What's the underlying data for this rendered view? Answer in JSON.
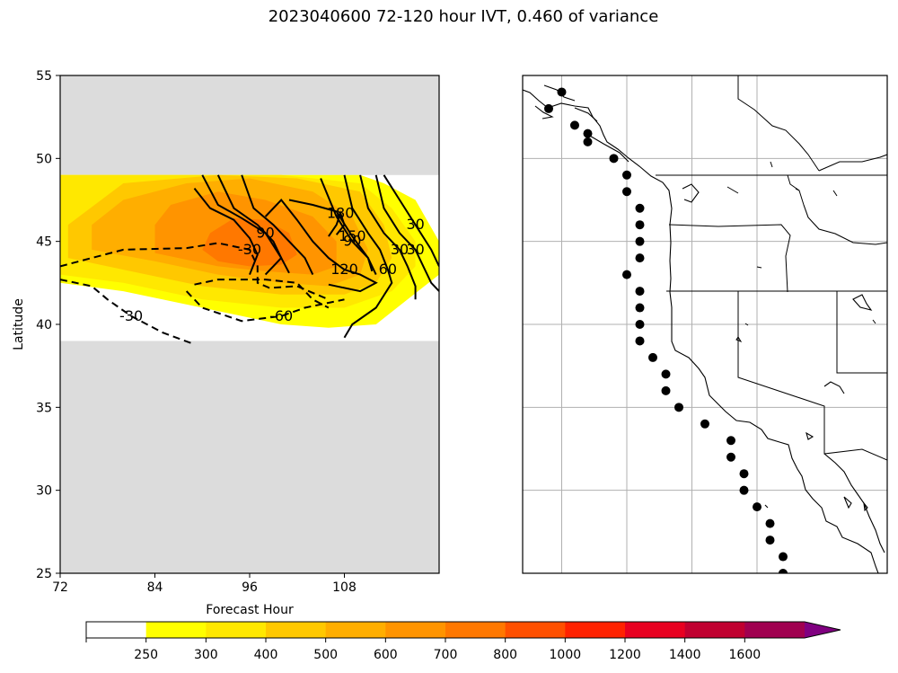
{
  "figure": {
    "title": "2023040600 72-120 hour IVT, 0.460 of variance"
  },
  "chart_data": [
    {
      "type": "heatmap",
      "panel": "hovmoller",
      "xlabel": "Forecast Hour",
      "ylabel": "Latitude",
      "xlim": [
        72,
        120
      ],
      "ylim": [
        25,
        55
      ],
      "xticks": [
        72,
        84,
        96,
        108
      ],
      "yticks": [
        25,
        30,
        35,
        40,
        45,
        50,
        55
      ],
      "masked_fill": "#dcdcdc",
      "data_lat_range": [
        39,
        49
      ],
      "fill_levels": [
        {
          "level": 250,
          "color": "#ffff00",
          "polygon": [
            [
              72,
              42.5
            ],
            [
              80,
              42
            ],
            [
              90,
              41
            ],
            [
              100,
              40
            ],
            [
              106,
              39.8
            ],
            [
              112,
              40
            ],
            [
              116,
              41.5
            ],
            [
              120,
              43
            ],
            [
              120,
              45
            ],
            [
              117,
              47.5
            ],
            [
              113,
              48.5
            ],
            [
              110,
              49
            ],
            [
              72,
              49
            ]
          ]
        },
        {
          "level": 300,
          "color": "#ffe800",
          "polygon": [
            [
              72,
              43
            ],
            [
              80,
              42.5
            ],
            [
              90,
              41.5
            ],
            [
              100,
              41
            ],
            [
              108,
              41
            ],
            [
              114,
              42
            ],
            [
              117,
              43.5
            ],
            [
              117,
              45
            ],
            [
              114,
              47
            ],
            [
              110,
              48.5
            ],
            [
              100,
              49
            ],
            [
              72,
              49
            ],
            [
              72,
              48
            ]
          ]
        },
        {
          "level": 400,
          "color": "#ffc800",
          "polygon": [
            [
              73,
              44
            ],
            [
              80,
              43.3
            ],
            [
              90,
              42.3
            ],
            [
              100,
              41.8
            ],
            [
              108,
              41.8
            ],
            [
              112,
              42.5
            ],
            [
              114,
              44
            ],
            [
              113,
              46
            ],
            [
              110,
              48
            ],
            [
              102,
              48.8
            ],
            [
              92,
              49
            ],
            [
              80,
              48.5
            ],
            [
              73,
              46
            ]
          ]
        },
        {
          "level": 500,
          "color": "#ffae00",
          "polygon": [
            [
              76,
              44.5
            ],
            [
              84,
              43.8
            ],
            [
              92,
              43
            ],
            [
              100,
              42.5
            ],
            [
              106,
              42.3
            ],
            [
              110,
              43
            ],
            [
              111,
              44.5
            ],
            [
              109,
              46.5
            ],
            [
              104,
              48
            ],
            [
              96,
              48.8
            ],
            [
              88,
              48.5
            ],
            [
              80,
              47.5
            ],
            [
              76,
              46
            ]
          ]
        },
        {
          "level": 600,
          "color": "#ff9400",
          "polygon": [
            [
              84,
              44.3
            ],
            [
              92,
              43.5
            ],
            [
              98,
              43.2
            ],
            [
              104,
              43
            ],
            [
              107,
              43.5
            ],
            [
              107,
              45
            ],
            [
              104,
              46.5
            ],
            [
              98,
              47.5
            ],
            [
              92,
              48
            ],
            [
              86,
              47.2
            ],
            [
              84,
              46
            ]
          ]
        },
        {
          "level": 700,
          "color": "#ff7800",
          "polygon": [
            [
              92,
              43.8
            ],
            [
              96,
              43.5
            ],
            [
              100,
              43.6
            ],
            [
              102,
              44.2
            ],
            [
              101,
              45.5
            ],
            [
              98,
              46.3
            ],
            [
              94,
              46.4
            ],
            [
              91,
              45.5
            ],
            [
              90,
              44.5
            ]
          ]
        }
      ],
      "contours": [
        {
          "level": 30,
          "label": "30",
          "style": "solid",
          "points": [
            [
              113,
              49
            ],
            [
              115,
              47.5
            ],
            [
              117,
              46
            ],
            [
              119,
              44.5
            ],
            [
              120,
              43.5
            ]
          ]
        },
        {
          "level": 30,
          "label": "30",
          "style": "solid",
          "points": [
            [
              112,
              49
            ],
            [
              113,
              47
            ],
            [
              115,
              45.5
            ],
            [
              117,
              44.5
            ],
            [
              118,
              43.5
            ],
            [
              119,
              42.5
            ],
            [
              120,
              42
            ]
          ]
        },
        {
          "level": 30,
          "label": "30",
          "style": "solid",
          "points": [
            [
              110,
              49
            ],
            [
              111,
              47
            ],
            [
              113,
              45.5
            ],
            [
              115,
              44.5
            ],
            [
              116,
              43.5
            ],
            [
              117,
              42.3
            ],
            [
              117,
              41.5
            ]
          ]
        },
        {
          "level": 60,
          "label": "60",
          "style": "solid",
          "points": [
            [
              108,
              49
            ],
            [
              109,
              47
            ],
            [
              111,
              45.5
            ],
            [
              112.5,
              44.5
            ],
            [
              113.5,
              43.3
            ],
            [
              114,
              42.5
            ],
            [
              112,
              41
            ],
            [
              109,
              40
            ],
            [
              108,
              39.2
            ]
          ]
        },
        {
          "level": 90,
          "label": "90",
          "style": "solid",
          "points": [
            [
              105,
              48.8
            ],
            [
              107,
              46.5
            ],
            [
              109,
              45
            ],
            [
              111,
              44
            ],
            [
              112,
              43
            ]
          ]
        },
        {
          "level": 150,
          "label": "150",
          "style": "solid",
          "points": [
            [
              101,
              47.5
            ],
            [
              104,
              47.2
            ],
            [
              107,
              46.8
            ],
            [
              109,
              45.3
            ],
            [
              111,
              44
            ],
            [
              111.5,
              43.2
            ]
          ]
        },
        {
          "level": 180,
          "label": "180",
          "style": "solid",
          "points": [
            [
              106,
              45.3
            ],
            [
              107,
              46
            ],
            [
              107.5,
              46.7
            ],
            [
              108,
              46
            ],
            [
              107,
              45.4
            ]
          ]
        },
        {
          "level": 120,
          "label": "120",
          "style": "solid",
          "points": [
            [
              98,
              46.5
            ],
            [
              100,
              47.5
            ],
            [
              102,
              46.3
            ],
            [
              104,
              45
            ],
            [
              106,
              44
            ],
            [
              108,
              43.3
            ],
            [
              110,
              43
            ],
            [
              112,
              42.5
            ],
            [
              110,
              42
            ],
            [
              106,
              42.4
            ]
          ]
        },
        {
          "level": 120,
          "label": "",
          "style": "solid",
          "points": [
            [
              89,
              48.2
            ],
            [
              91,
              47
            ],
            [
              94,
              46.3
            ],
            [
              96,
              45.2
            ],
            [
              97,
              44.2
            ],
            [
              96,
              43
            ]
          ]
        },
        {
          "level": 90,
          "label": "90",
          "style": "solid",
          "points": [
            [
              90,
              49
            ],
            [
              92,
              47.2
            ],
            [
              95,
              46.4
            ],
            [
              98,
              45.5
            ],
            [
              100,
              44
            ],
            [
              98,
              43
            ]
          ]
        },
        {
          "level": 60,
          "label": "",
          "style": "solid",
          "points": [
            [
              92,
              49
            ],
            [
              94,
              47
            ],
            [
              97,
              46
            ],
            [
              99,
              45
            ],
            [
              100,
              44
            ],
            [
              101,
              43.1
            ]
          ]
        },
        {
          "level": 30,
          "label": "",
          "style": "solid",
          "points": [
            [
              95,
              49
            ],
            [
              96.5,
              47
            ],
            [
              99,
              46
            ],
            [
              101,
              45
            ],
            [
              103,
              44
            ],
            [
              104,
              43
            ]
          ]
        },
        {
          "level": -30,
          "label": "-30",
          "style": "dashed",
          "points": [
            [
              72,
              43.5
            ],
            [
              76,
              44
            ],
            [
              80,
              44.5
            ],
            [
              88,
              44.6
            ],
            [
              92,
              44.9
            ],
            [
              96,
              44.5
            ],
            [
              97,
              43.5
            ],
            [
              97,
              42.5
            ],
            [
              98.5,
              42.2
            ],
            [
              102,
              42.3
            ],
            [
              106,
              41.5
            ]
          ]
        },
        {
          "level": -30,
          "label": "-30",
          "style": "dashed",
          "points": [
            [
              72,
              42.7
            ],
            [
              76,
              42.3
            ],
            [
              78,
              41.5
            ],
            [
              81,
              40.5
            ],
            [
              85,
              39.5
            ],
            [
              89,
              38.8
            ]
          ]
        },
        {
          "level": -60,
          "label": "-60",
          "style": "dashed",
          "points": [
            [
              88,
              42
            ],
            [
              90,
              41
            ],
            [
              95,
              40.2
            ],
            [
              100,
              40.5
            ],
            [
              103,
              41
            ],
            [
              106,
              41.3
            ],
            [
              108,
              41.5
            ]
          ]
        },
        {
          "level": -60,
          "label": "",
          "style": "dashed",
          "points": [
            [
              89,
              42.4
            ],
            [
              92,
              42.7
            ],
            [
              98,
              42.7
            ],
            [
              102,
              42.5
            ],
            [
              104,
              41.5
            ],
            [
              106,
              41
            ]
          ]
        }
      ]
    },
    {
      "type": "scatter",
      "panel": "map",
      "xlim": [
        -135,
        -107
      ],
      "ylim": [
        25,
        55
      ],
      "grid": true,
      "gridlines_lon": [
        -132,
        -127,
        -122,
        -117
      ],
      "gridlines_lat": [
        30,
        35,
        40,
        45,
        50
      ],
      "points": [
        [
          -132,
          54
        ],
        [
          -133,
          53
        ],
        [
          -131,
          52
        ],
        [
          -130,
          51.5
        ],
        [
          -130,
          51
        ],
        [
          -128,
          50
        ],
        [
          -127,
          49
        ],
        [
          -127,
          48
        ],
        [
          -126,
          47
        ],
        [
          -126,
          46
        ],
        [
          -126,
          45
        ],
        [
          -126,
          44
        ],
        [
          -127,
          43
        ],
        [
          -126,
          42
        ],
        [
          -126,
          41
        ],
        [
          -126,
          40
        ],
        [
          -126,
          39
        ],
        [
          -125,
          38
        ],
        [
          -124,
          37
        ],
        [
          -124,
          36
        ],
        [
          -123,
          35
        ],
        [
          -121,
          34
        ],
        [
          -119,
          33
        ],
        [
          -119,
          32
        ],
        [
          -118,
          31
        ],
        [
          -118,
          30
        ],
        [
          -117,
          29
        ],
        [
          -116,
          28
        ],
        [
          -116,
          27
        ],
        [
          -115,
          26
        ],
        [
          -115,
          25
        ]
      ]
    }
  ],
  "colorbar": {
    "extend": "max",
    "tick_labels": [
      "250",
      "300",
      "400",
      "500",
      "600",
      "700",
      "800",
      "1000",
      "1200",
      "1400",
      "1600"
    ],
    "colors": [
      "#ffffff",
      "#ffff00",
      "#ffe800",
      "#ffc800",
      "#ffae00",
      "#ff9400",
      "#ff7800",
      "#ff5000",
      "#ff2200",
      "#e80020",
      "#c00030",
      "#a00050",
      "#800080",
      "#5a0096"
    ]
  }
}
